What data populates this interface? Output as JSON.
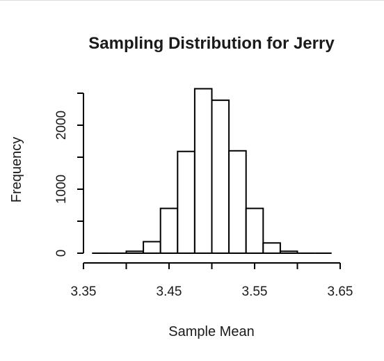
{
  "chart_data": {
    "type": "histogram",
    "title": "Sampling Distribution for Jerry",
    "xlabel": "Sample Mean",
    "ylabel": "Frequency",
    "x_ticks": [
      3.35,
      3.45,
      3.55,
      3.65
    ],
    "x_tick_labels": [
      "3.35",
      "3.45",
      "3.55",
      "3.65"
    ],
    "y_ticks": [
      0,
      1000,
      2000
    ],
    "y_tick_labels": [
      "0",
      "1000",
      "2000"
    ],
    "xlim": [
      3.35,
      3.65
    ],
    "ylim": [
      0,
      2500
    ],
    "bins": [
      {
        "x0": 3.36,
        "x1": 3.38,
        "count": 0
      },
      {
        "x0": 3.38,
        "x1": 3.4,
        "count": 0
      },
      {
        "x0": 3.4,
        "x1": 3.42,
        "count": 30
      },
      {
        "x0": 3.42,
        "x1": 3.44,
        "count": 180
      },
      {
        "x0": 3.44,
        "x1": 3.46,
        "count": 700
      },
      {
        "x0": 3.46,
        "x1": 3.48,
        "count": 1590
      },
      {
        "x0": 3.48,
        "x1": 3.5,
        "count": 2570
      },
      {
        "x0": 3.5,
        "x1": 3.52,
        "count": 2390
      },
      {
        "x0": 3.52,
        "x1": 3.54,
        "count": 1600
      },
      {
        "x0": 3.54,
        "x1": 3.56,
        "count": 700
      },
      {
        "x0": 3.56,
        "x1": 3.58,
        "count": 160
      },
      {
        "x0": 3.58,
        "x1": 3.6,
        "count": 30
      },
      {
        "x0": 3.6,
        "x1": 3.62,
        "count": 0
      },
      {
        "x0": 3.62,
        "x1": 3.64,
        "count": 0
      }
    ],
    "grid": false,
    "legend": "none"
  }
}
